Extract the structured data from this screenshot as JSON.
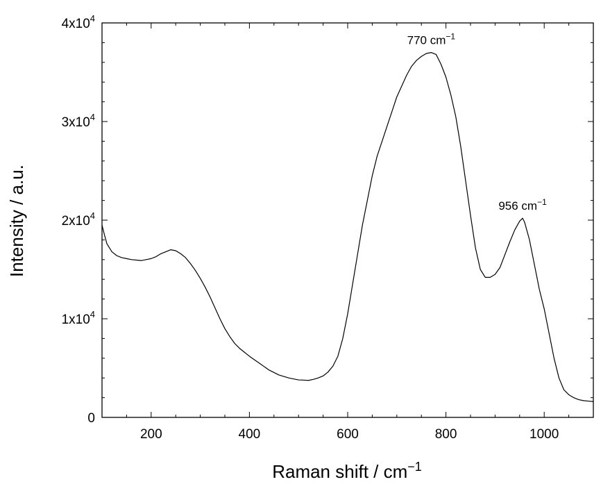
{
  "chart_data": {
    "type": "line",
    "title": "",
    "xlabel": "Raman shift / cm",
    "xlabel_sup": "−1",
    "ylabel": "Intensity / a.u.",
    "xlim": [
      100,
      1100
    ],
    "ylim": [
      0,
      40000
    ],
    "grid": false,
    "legend": "none",
    "line_color": "#000000",
    "x_ticks": [
      {
        "value": 200,
        "label": "200"
      },
      {
        "value": 400,
        "label": "400"
      },
      {
        "value": 600,
        "label": "600"
      },
      {
        "value": 800,
        "label": "800"
      },
      {
        "value": 1000,
        "label": "1000"
      }
    ],
    "y_ticks": [
      {
        "value": 0,
        "base": "0",
        "exp": ""
      },
      {
        "value": 10000,
        "base": "1x10",
        "exp": "4"
      },
      {
        "value": 20000,
        "base": "2x10",
        "exp": "4"
      },
      {
        "value": 30000,
        "base": "3x10",
        "exp": "4"
      },
      {
        "value": 40000,
        "base": "4x10",
        "exp": "4"
      }
    ],
    "annotations": [
      {
        "x": 770,
        "y": 37000,
        "text": "770 cm",
        "sup": "−1"
      },
      {
        "x": 956,
        "y": 20200,
        "text": "956 cm",
        "sup": "−1"
      }
    ],
    "series": [
      {
        "x": [
          100,
          105,
          110,
          120,
          130,
          140,
          150,
          160,
          170,
          180,
          190,
          200,
          210,
          220,
          230,
          240,
          250,
          260,
          270,
          280,
          290,
          300,
          310,
          320,
          330,
          340,
          350,
          360,
          370,
          380,
          390,
          400,
          420,
          440,
          460,
          480,
          500,
          510,
          520,
          530,
          540,
          550,
          560,
          570,
          580,
          590,
          600,
          610,
          620,
          630,
          640,
          650,
          660,
          670,
          680,
          690,
          700,
          710,
          720,
          730,
          740,
          750,
          760,
          770,
          780,
          790,
          800,
          810,
          820,
          830,
          840,
          850,
          860,
          870,
          880,
          890,
          900,
          910,
          920,
          930,
          940,
          950,
          956,
          960,
          970,
          980,
          990,
          1000,
          1010,
          1020,
          1030,
          1040,
          1050,
          1060,
          1070,
          1080,
          1090,
          1100
        ],
        "y": [
          19500,
          18500,
          17600,
          16800,
          16400,
          16200,
          16100,
          16000,
          15950,
          15900,
          16000,
          16100,
          16300,
          16600,
          16800,
          17000,
          16900,
          16600,
          16200,
          15600,
          14900,
          14100,
          13200,
          12200,
          11100,
          10000,
          9000,
          8200,
          7500,
          7000,
          6600,
          6200,
          5500,
          4800,
          4300,
          4000,
          3800,
          3780,
          3750,
          3850,
          4000,
          4200,
          4600,
          5200,
          6200,
          8000,
          10500,
          13500,
          16500,
          19500,
          22000,
          24500,
          26500,
          28000,
          29500,
          31000,
          32500,
          33600,
          34700,
          35600,
          36200,
          36600,
          36900,
          37000,
          36800,
          35800,
          34500,
          32700,
          30500,
          27500,
          24000,
          20500,
          17200,
          15000,
          14200,
          14200,
          14500,
          15200,
          16500,
          17800,
          19000,
          19900,
          20200,
          19800,
          18000,
          15500,
          13000,
          11000,
          8500,
          6000,
          4000,
          2800,
          2300,
          2000,
          1800,
          1700,
          1650,
          1600
        ]
      }
    ],
    "style": {
      "line_width": 1.2
    }
  }
}
